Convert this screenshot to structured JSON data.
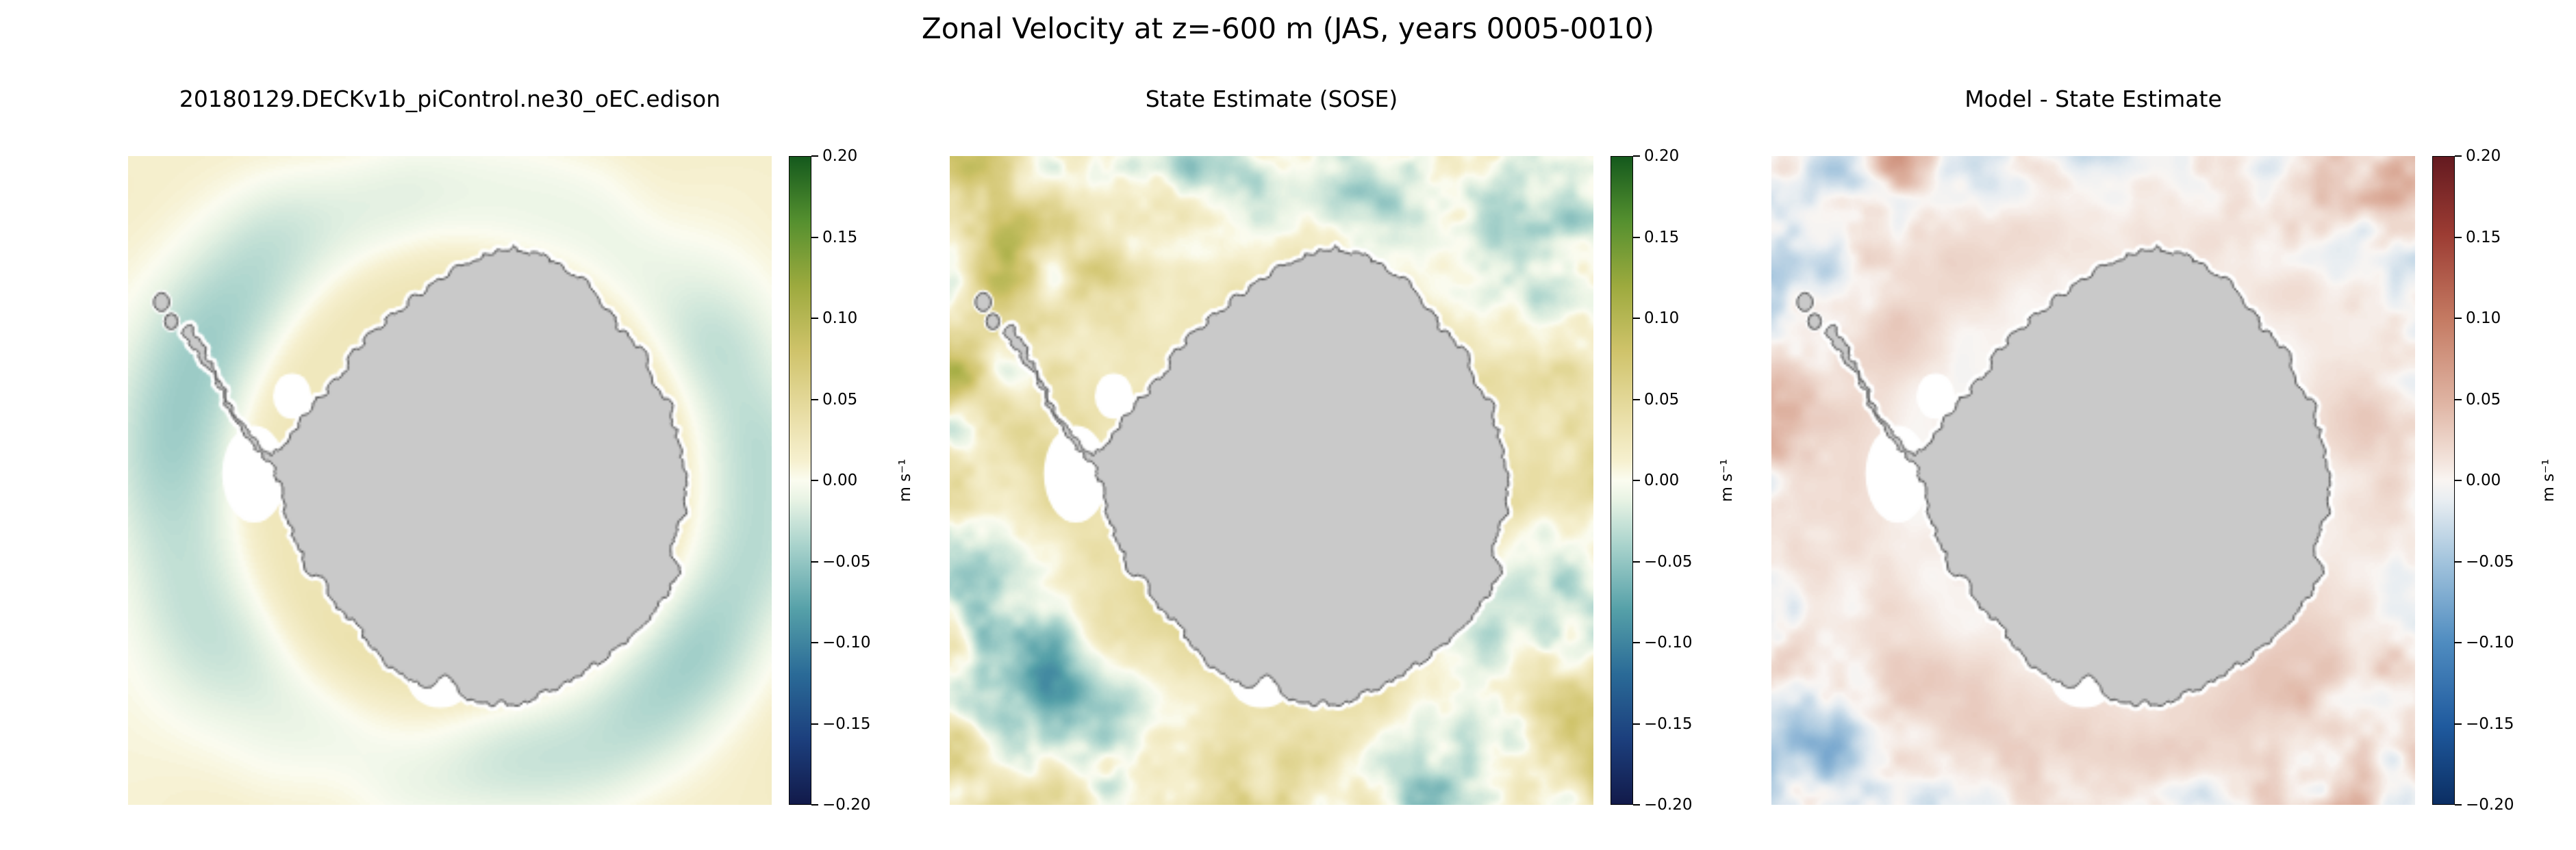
{
  "figure": {
    "title": "Zonal Velocity at z=-600 m (JAS, years 0005-0010)"
  },
  "panels": [
    {
      "title": "20180129.DECKv1b_piControl.ne30_oEC.edison"
    },
    {
      "title": "State Estimate (SOSE)"
    },
    {
      "title": "Model - State Estimate"
    }
  ],
  "colorbar": {
    "unit_label": "m s⁻¹",
    "ticks": [
      "0.20",
      "0.15",
      "0.10",
      "0.05",
      "0.00",
      "−0.05",
      "−0.10",
      "−0.15",
      "−0.20"
    ],
    "vmin": -0.2,
    "vmax": 0.2
  },
  "chart_data": {
    "type": "heatmap",
    "title": "Zonal Velocity at z=-600 m (JAS, years 0005-0010)",
    "variable": "zonal velocity",
    "depth_m": -600,
    "season": "JAS",
    "years": "0005-0010",
    "units": "m s⁻¹",
    "value_range": [
      -0.2,
      0.2
    ],
    "colorbar_ticks": [
      0.2,
      0.15,
      0.1,
      0.05,
      0.0,
      -0.05,
      -0.1,
      -0.15,
      -0.2
    ],
    "panels": [
      {
        "title": "20180129.DECKv1b_piControl.ne30_oEC.edison",
        "colormap": "delta",
        "description": "Smooth field: weak positive (pale yellow) background with a ring of weak negative (light cyan) zonal flow encircling Antarctica"
      },
      {
        "title": "State Estimate (SOSE)",
        "colormap": "delta",
        "description": "Same large-scale pattern but with strong mesoscale eddies; dark green and blue patches toward the domain edges"
      },
      {
        "title": "Model - State Estimate",
        "colormap": "balance",
        "description": "Difference map: near zero (white/pale pink) around the continent, blue and red eddy streaks toward the domain edges and corners"
      }
    ],
    "colormaps": {
      "delta": {
        "stops": [
          [
            0.0,
            "#121a4a"
          ],
          [
            0.1,
            "#1c3f7d"
          ],
          [
            0.2,
            "#2a6a97"
          ],
          [
            0.3,
            "#55a0a8"
          ],
          [
            0.4,
            "#a9d3cc"
          ],
          [
            0.47,
            "#e8f3e4"
          ],
          [
            0.5,
            "#fbfcf0"
          ],
          [
            0.53,
            "#f6f0cf"
          ],
          [
            0.6,
            "#e9dea6"
          ],
          [
            0.7,
            "#cfc36a"
          ],
          [
            0.8,
            "#9daa3e"
          ],
          [
            0.9,
            "#55902f"
          ],
          [
            1.0,
            "#14591d"
          ]
        ]
      },
      "balance": {
        "stops": [
          [
            0.0,
            "#0b2e63"
          ],
          [
            0.12,
            "#1f5a9e"
          ],
          [
            0.25,
            "#4f8cc0"
          ],
          [
            0.38,
            "#a6c6de"
          ],
          [
            0.47,
            "#e9eef2"
          ],
          [
            0.5,
            "#f9f5f2"
          ],
          [
            0.53,
            "#f3e4dc"
          ],
          [
            0.62,
            "#dfb4a3"
          ],
          [
            0.75,
            "#c47a62"
          ],
          [
            0.88,
            "#9c3c33"
          ],
          [
            1.0,
            "#641a20"
          ]
        ]
      }
    },
    "land_color": "#c9c9c9",
    "coast_color": "#4d4d4d",
    "region": "Antarctica / Southern Ocean polar view"
  }
}
